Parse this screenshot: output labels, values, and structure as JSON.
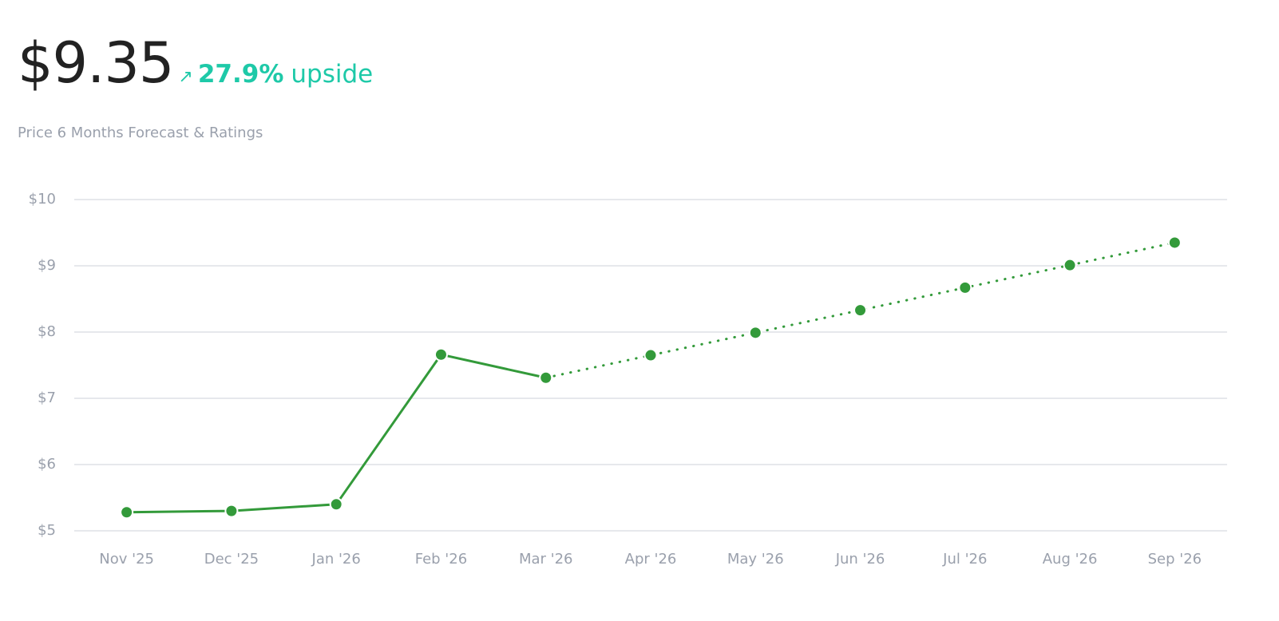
{
  "header": {
    "price": "$9.35",
    "arrow": "↗",
    "change": "27.9%",
    "change_label": "upside",
    "subtitle": "Price 6 Months Forecast & Ratings"
  },
  "chart_data": {
    "type": "line",
    "categories": [
      "Nov '25",
      "Dec '25",
      "Jan '26",
      "Feb '26",
      "Mar '26",
      "Apr '26",
      "May '26",
      "Jun '26",
      "Jul '26",
      "Aug '26",
      "Sep '26"
    ],
    "series": [
      {
        "style": "solid",
        "color": "#339a3a",
        "values": [
          5.28,
          5.3,
          5.4,
          7.66,
          7.31,
          null,
          null,
          null,
          null,
          null,
          null
        ]
      },
      {
        "style": "dotted",
        "color": "#339a3a",
        "values": [
          null,
          null,
          null,
          null,
          7.31,
          7.65,
          7.99,
          8.33,
          8.67,
          9.01,
          9.35
        ]
      }
    ],
    "ylim": [
      5,
      10
    ],
    "yticks": [
      {
        "value": 5,
        "label": "$5"
      },
      {
        "value": 6,
        "label": "$6"
      },
      {
        "value": 7,
        "label": "$7"
      },
      {
        "value": 8,
        "label": "$8"
      },
      {
        "value": 9,
        "label": "$9"
      },
      {
        "value": 10,
        "label": "$10"
      }
    ],
    "grid": true
  }
}
